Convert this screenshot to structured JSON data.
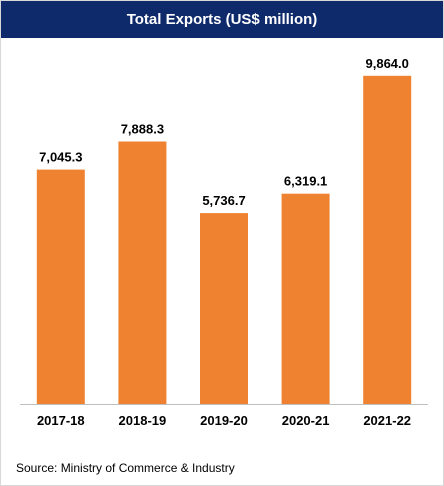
{
  "colors": {
    "title_bg": "#0e2a6b",
    "bar": "#ef8230",
    "axis": "#bfbfbf"
  },
  "footer": {
    "source": "Source: Ministry of Commerce & Industry"
  },
  "chart_data": {
    "type": "bar",
    "title": "Total Exports (US$ million)",
    "categories": [
      "2017-18",
      "2018-19",
      "2019-20",
      "2020-21",
      "2021-22"
    ],
    "values": [
      7045.3,
      7888.3,
      5736.7,
      6319.1,
      9864.0
    ],
    "data_labels": [
      "7,045.3",
      "7,888.3",
      "5,736.7",
      "6,319.1",
      "9,864.0"
    ],
    "ylim": [
      0,
      11000
    ],
    "grid": false,
    "legend": "none"
  }
}
